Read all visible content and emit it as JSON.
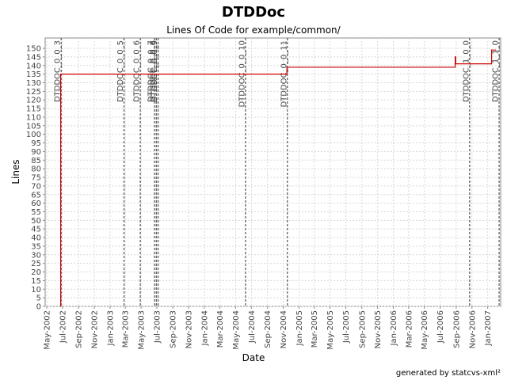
{
  "chart_data": {
    "type": "line",
    "title": "DTDDoc",
    "subtitle": "Lines Of Code for example/common/",
    "xlabel": "Date",
    "ylabel": "Lines",
    "footer": "generated by statcvs-xml²",
    "grid": true,
    "x_axis": {
      "type": "date",
      "range": [
        "2002-04-25",
        "2007-02-20"
      ]
    },
    "ylim": [
      0,
      156
    ],
    "y_ticks": [
      0,
      5,
      10,
      15,
      20,
      25,
      30,
      35,
      40,
      45,
      50,
      55,
      60,
      65,
      70,
      75,
      80,
      85,
      90,
      95,
      100,
      105,
      110,
      115,
      120,
      125,
      130,
      135,
      140,
      145,
      150
    ],
    "x_ticks": [
      {
        "label": "May-2002",
        "date": "2002-05-01"
      },
      {
        "label": "Jul-2002",
        "date": "2002-07-01"
      },
      {
        "label": "Sep-2002",
        "date": "2002-09-01"
      },
      {
        "label": "Nov-2002",
        "date": "2002-11-01"
      },
      {
        "label": "Jan-2003",
        "date": "2003-01-01"
      },
      {
        "label": "Mar-2003",
        "date": "2003-03-01"
      },
      {
        "label": "May-2003",
        "date": "2003-05-01"
      },
      {
        "label": "Jul-2003",
        "date": "2003-07-01"
      },
      {
        "label": "Sep-2003",
        "date": "2003-09-01"
      },
      {
        "label": "Nov-2003",
        "date": "2003-11-01"
      },
      {
        "label": "Jan-2004",
        "date": "2004-01-01"
      },
      {
        "label": "Mar-2004",
        "date": "2004-03-01"
      },
      {
        "label": "May-2004",
        "date": "2004-05-01"
      },
      {
        "label": "Jul-2004",
        "date": "2004-07-01"
      },
      {
        "label": "Sep-2004",
        "date": "2004-09-01"
      },
      {
        "label": "Nov-2004",
        "date": "2004-11-01"
      },
      {
        "label": "Jan-2005",
        "date": "2005-01-01"
      },
      {
        "label": "Mar-2005",
        "date": "2005-03-01"
      },
      {
        "label": "May-2005",
        "date": "2005-05-01"
      },
      {
        "label": "Jul-2005",
        "date": "2005-07-01"
      },
      {
        "label": "Sep-2005",
        "date": "2005-09-01"
      },
      {
        "label": "Nov-2005",
        "date": "2005-11-01"
      },
      {
        "label": "Jan-2006",
        "date": "2006-01-01"
      },
      {
        "label": "Mar-2006",
        "date": "2006-03-01"
      },
      {
        "label": "May-2006",
        "date": "2006-05-01"
      },
      {
        "label": "Jul-2006",
        "date": "2006-07-01"
      },
      {
        "label": "Sep-2006",
        "date": "2006-09-01"
      },
      {
        "label": "Nov-2006",
        "date": "2006-11-01"
      },
      {
        "label": "Jan-2007",
        "date": "2007-01-01"
      }
    ],
    "series": [
      {
        "color": "#cc0000",
        "step": true,
        "points": [
          {
            "x": "2002-06-23",
            "y": 0
          },
          {
            "x": "2002-06-24",
            "y": 135
          },
          {
            "x": "2004-11-14",
            "y": 135
          },
          {
            "x": "2004-11-15",
            "y": 139
          },
          {
            "x": "2006-08-26",
            "y": 139
          },
          {
            "x": "2006-08-28",
            "y": 145
          },
          {
            "x": "2006-08-30",
            "y": 141
          },
          {
            "x": "2007-01-15",
            "y": 141
          },
          {
            "x": "2007-01-16",
            "y": 149
          },
          {
            "x": "2007-02-01",
            "y": 149
          }
        ]
      }
    ],
    "markers": [
      {
        "label": "DTDDOC_0_0_3",
        "date": "2002-06-26"
      },
      {
        "label": "DTDDOC_0_0_5",
        "date": "2003-02-24"
      },
      {
        "label": "DTDDOC_0_0_6",
        "date": "2003-04-28"
      },
      {
        "label": "DTDDOC_0_0_7",
        "date": "2003-06-22"
      },
      {
        "label": "DTDDOC_0_0_8",
        "date": "2003-06-29"
      },
      {
        "label": "DTDDOC_0_0_9",
        "date": "2003-07-06"
      },
      {
        "label": "DTDDOC_0_0_10",
        "date": "2004-06-08"
      },
      {
        "label": "DTDDOC_0_0_11",
        "date": "2004-11-17"
      },
      {
        "label": "DTDDOC_1_0_0",
        "date": "2006-10-23"
      },
      {
        "label": "DTDDOC_1_1_0",
        "date": "2007-02-14"
      }
    ]
  }
}
